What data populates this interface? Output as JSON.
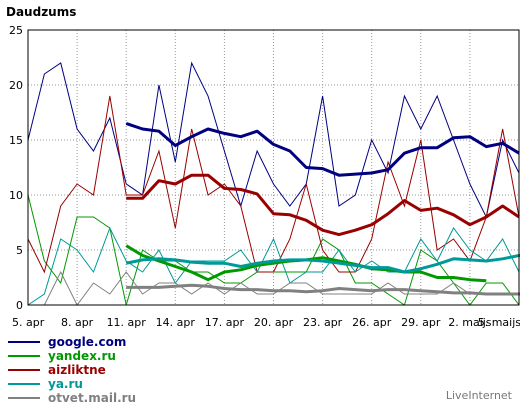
{
  "chart_data": {
    "type": "line",
    "title": "Daudzums",
    "ylim": [
      0,
      25
    ],
    "yticks": [
      "0",
      "5",
      "10",
      "15",
      "20",
      "25"
    ],
    "xtick_labels": [
      "5. apr",
      "8. apr",
      "11. apr",
      "14. apr",
      "17. apr",
      "20. apr",
      "23. apr",
      "26. apr",
      "29. apr",
      "2. maijs",
      "5. maijs"
    ],
    "x_count": 31,
    "grid": true,
    "series": [
      {
        "name": "google.com",
        "color": "#000080",
        "values": [
          15,
          21,
          22,
          16,
          14,
          17,
          11,
          10,
          20,
          13,
          22,
          19,
          14,
          9,
          14,
          11,
          9,
          11,
          19,
          9,
          10,
          15,
          12,
          19,
          16,
          19,
          15,
          11,
          8,
          15,
          12
        ]
      },
      {
        "name": "yandex.ru",
        "color": "#009900",
        "values": [
          10,
          4,
          2,
          8,
          8,
          7,
          0,
          5,
          4,
          4,
          3,
          3,
          2,
          2,
          3,
          3,
          3,
          3,
          6,
          5,
          2,
          2,
          1,
          0,
          5,
          4,
          2,
          0,
          2,
          2,
          0
        ]
      },
      {
        "name": "aizliktne",
        "color": "#990000",
        "values": [
          6,
          3,
          9,
          11,
          10,
          19,
          10,
          10,
          14,
          7,
          16,
          10,
          11,
          9,
          3,
          3,
          6,
          11,
          5,
          3,
          3,
          6,
          13,
          9,
          15,
          5,
          6,
          4,
          8,
          16,
          8
        ]
      },
      {
        "name": "ya.ru",
        "color": "#009999",
        "values": [
          0,
          1,
          6,
          5,
          3,
          7,
          4,
          3,
          5,
          2,
          4,
          4,
          4,
          5,
          3,
          6,
          2,
          3,
          3,
          5,
          3,
          4,
          3,
          3,
          6,
          4,
          7,
          5,
          4,
          6,
          3
        ]
      },
      {
        "name": "ovet.mail.ru",
        "display_name": "otvet.mail.ru",
        "color": "#808080",
        "values": [
          0,
          0,
          3,
          0,
          2,
          1,
          3,
          1,
          2,
          2,
          1,
          2,
          1,
          2,
          1,
          1,
          2,
          2,
          1,
          1,
          1,
          1,
          2,
          1,
          1,
          1,
          2,
          1,
          1,
          1,
          1
        ]
      }
    ],
    "averages": [
      {
        "series": "google.com",
        "color": "#000080",
        "values": [
          16.5,
          16,
          15.8,
          14.5,
          15.3,
          16,
          15.6,
          15.3,
          15.8,
          14.6,
          14,
          12.5,
          12.4,
          11.8,
          11.9,
          12,
          12.3,
          13.8,
          14.3,
          14.3,
          15.2,
          15.3,
          14.4,
          14.7,
          13.8
        ]
      },
      {
        "series": "yandex.ru",
        "color": "#009900",
        "values": [
          5.4,
          4.5,
          4,
          3.5,
          3,
          2.3,
          3,
          3.2,
          3.6,
          3.8,
          4,
          4.1,
          4.3,
          4,
          3.7,
          3.3,
          3.2,
          3,
          3,
          2.5,
          2.5,
          2.3,
          2.2
        ]
      },
      {
        "series": "aizliktne",
        "color": "#990000",
        "values": [
          9.7,
          9.7,
          11.3,
          11,
          11.8,
          11.8,
          10.6,
          10.5,
          10.1,
          8.3,
          8.2,
          7.7,
          6.8,
          6.4,
          6.8,
          7.3,
          8.3,
          9.5,
          8.6,
          8.8,
          8.2,
          7.3,
          8,
          9,
          8
        ]
      },
      {
        "series": "ya.ru",
        "color": "#009999",
        "values": [
          3.8,
          4.1,
          4.2,
          4.1,
          3.9,
          3.8,
          3.8,
          3.5,
          3.8,
          4,
          4.1,
          4.1,
          4,
          3.8,
          3.6,
          3.4,
          3.4,
          3,
          3.3,
          3.7,
          4.2,
          4.1,
          4,
          4.2,
          4.5,
          4.5
        ]
      },
      {
        "series": "ovet.mail.ru",
        "color": "#808080",
        "values": [
          1.6,
          1.6,
          1.6,
          1.7,
          1.8,
          1.7,
          1.5,
          1.4,
          1.4,
          1.3,
          1.3,
          1.2,
          1.3,
          1.5,
          1.4,
          1.3,
          1.4,
          1.4,
          1.3,
          1.2,
          1.1,
          1.1,
          1,
          1,
          1,
          1
        ]
      }
    ]
  },
  "brand": "LiveInternet"
}
